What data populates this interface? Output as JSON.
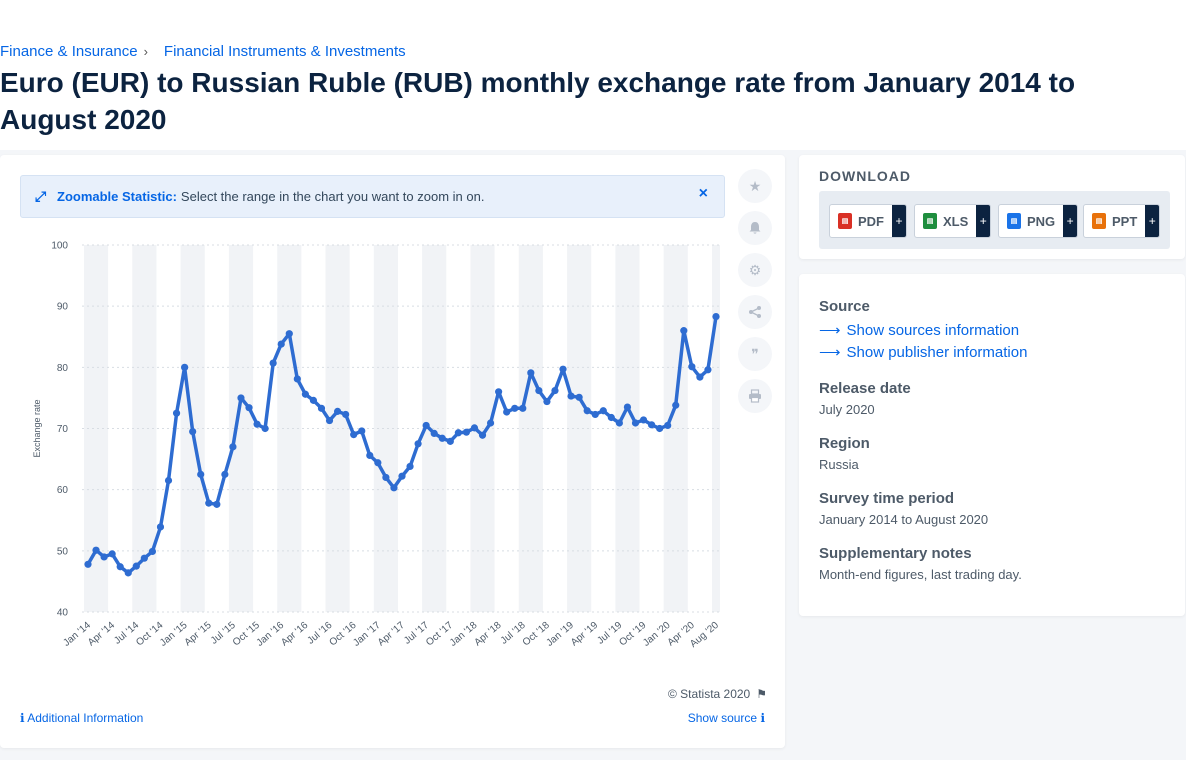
{
  "breadcrumbs": [
    "Finance & Insurance",
    "Financial Instruments & Investments"
  ],
  "breadcrumb_separator": "›",
  "title": "Euro (EUR) to Russian Ruble (RUB) monthly exchange rate from January 2014 to August 2020",
  "zoom": {
    "label": "Zoomable Statistic:",
    "text": "Select the range in the chart you want to zoom in on.",
    "close": "×"
  },
  "copyright": "© Statista 2020",
  "additional_info": "Additional Information",
  "show_source": "Show source",
  "download": {
    "heading": "DOWNLOAD",
    "formats": [
      {
        "label": "PDF",
        "color": "#d93025"
      },
      {
        "label": "XLS",
        "color": "#1e8e3e"
      },
      {
        "label": "PNG",
        "color": "#1a73e8"
      },
      {
        "label": "PPT",
        "color": "#e8710a"
      }
    ],
    "plus": "+"
  },
  "meta": {
    "source_label": "Source",
    "show_sources": "Show sources information",
    "show_publisher": "Show publisher information",
    "release_label": "Release date",
    "release_value": "July 2020",
    "region_label": "Region",
    "region_value": "Russia",
    "survey_label": "Survey time period",
    "survey_value": "January 2014 to August 2020",
    "notes_label": "Supplementary notes",
    "notes_value": "Month-end figures, last trading day."
  },
  "colors": {
    "line": "#2e6cd1",
    "accent": "#0666e5",
    "title": "#0c2340"
  },
  "chart_data": {
    "type": "line",
    "ylabel": "Exchange rate",
    "xlabel": "",
    "ylim": [
      40,
      100
    ],
    "yticks": [
      40,
      50,
      60,
      70,
      80,
      90,
      100
    ],
    "x_tick_labels": [
      "Jan '14",
      "Apr '14",
      "Jul '14",
      "Oct '14",
      "Jan '15",
      "Apr '15",
      "Jul '15",
      "Oct '15",
      "Jan '16",
      "Apr '16",
      "Jul '16",
      "Oct '16",
      "Jan '17",
      "Apr '17",
      "Jul '17",
      "Oct '17",
      "Jan '18",
      "Apr '18",
      "Jul '18",
      "Oct '18",
      "Jan '19",
      "Apr '19",
      "Jul '19",
      "Oct '19",
      "Jan '20",
      "Apr '20",
      "Aug '20"
    ],
    "grid": true,
    "series": [
      {
        "values": [
          47.8,
          50.1,
          49.0,
          49.5,
          47.4,
          46.4,
          47.5,
          48.8,
          49.9,
          53.9,
          61.5,
          72.5,
          80.0,
          69.5,
          62.5,
          57.8,
          57.6,
          62.5,
          67.0,
          75.0,
          73.4,
          70.7,
          70.0,
          80.7,
          83.8,
          85.5,
          78.1,
          75.6,
          74.6,
          73.3,
          71.3,
          72.8,
          72.3,
          69.0,
          69.6,
          65.6,
          64.4,
          62.0,
          60.3,
          62.2,
          63.8,
          67.5,
          70.5,
          69.2,
          68.4,
          67.9,
          69.3,
          69.4,
          70.1,
          68.9,
          70.9,
          76.0,
          72.7,
          73.3,
          73.3,
          79.1,
          76.2,
          74.4,
          76.2,
          79.7,
          75.3,
          75.1,
          72.9,
          72.3,
          72.9,
          71.8,
          70.9,
          73.5,
          70.9,
          71.4,
          70.6,
          70.0,
          70.5,
          73.8,
          86.0,
          80.1,
          78.4,
          79.6,
          88.3
        ]
      }
    ]
  }
}
